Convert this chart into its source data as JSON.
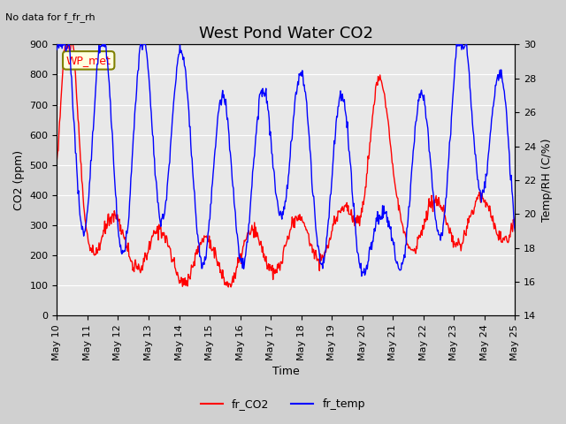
{
  "title": "West Pond Water CO2",
  "subtitle": "No data for f_fr_rh",
  "xlabel": "Time",
  "ylabel_left": "CO2 (ppm)",
  "ylabel_right": "Temp/RH (C/%)",
  "ylim_left": [
    0,
    900
  ],
  "ylim_right": [
    14,
    30
  ],
  "legend_entries": [
    "fr_CO2",
    "fr_temp"
  ],
  "legend_colors": [
    "red",
    "blue"
  ],
  "annotation": "WP_met",
  "annotation_color": "red",
  "annotation_box_color": "lightyellow",
  "bg_color": "#e8e8e8",
  "x_tick_labels": [
    "May 10",
    "May 11",
    "May 12",
    "May 13",
    "May 14",
    "May 15",
    "May 16",
    "May 17",
    "May 18",
    "May 19",
    "May 20",
    "May 21",
    "May 22",
    "May 23",
    "May 24",
    "May 25"
  ],
  "n_days": 15,
  "title_fontsize": 13,
  "axis_fontsize": 9,
  "tick_fontsize": 8
}
